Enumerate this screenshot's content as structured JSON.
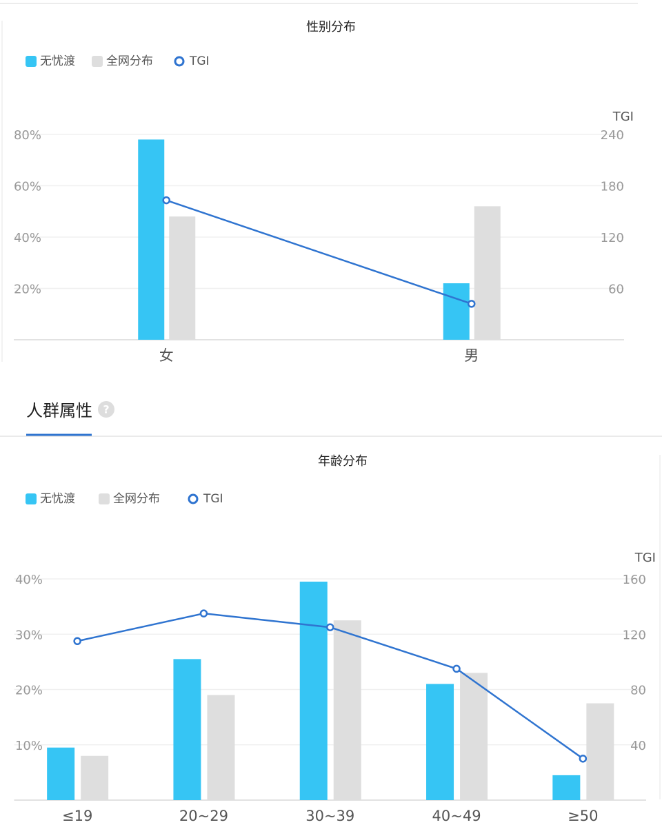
{
  "section_title": "人群属性",
  "chart_data": [
    {
      "type": "bar",
      "title": "性别分布",
      "categories": [
        "女",
        "男"
      ],
      "series": [
        {
          "name": "无忧渡",
          "color": "#36c5f4",
          "values": [
            78,
            22
          ]
        },
        {
          "name": "全网分布",
          "color": "#dedede",
          "values": [
            48,
            52
          ]
        },
        {
          "name": "TGI",
          "color": "#2f74d0",
          "type": "line",
          "axis": "y2",
          "values": [
            163,
            42
          ]
        }
      ],
      "ylim": [
        0,
        80
      ],
      "yticks": [
        {
          "value": 20,
          "label": "20%"
        },
        {
          "value": 40,
          "label": "40%"
        },
        {
          "value": 60,
          "label": "60%"
        },
        {
          "value": 80,
          "label": "80%"
        }
      ],
      "y2label": "TGI",
      "y2lim": [
        0,
        240
      ],
      "y2ticks": [
        60,
        120,
        180,
        240
      ],
      "grid": true,
      "legend": "top-left"
    },
    {
      "type": "bar",
      "title": "年龄分布",
      "categories": [
        "≤19",
        "20~29",
        "30~39",
        "40~49",
        "≥50"
      ],
      "series": [
        {
          "name": "无忧渡",
          "color": "#36c5f4",
          "values": [
            9.5,
            25.5,
            39.5,
            21,
            4.5
          ]
        },
        {
          "name": "全网分布",
          "color": "#dedede",
          "values": [
            8,
            19,
            32.5,
            23,
            17.5
          ]
        },
        {
          "name": "TGI",
          "color": "#2f74d0",
          "type": "line",
          "axis": "y2",
          "values": [
            115,
            135,
            125,
            95,
            30
          ]
        }
      ],
      "ylim": [
        0,
        40
      ],
      "yticks": [
        {
          "value": 10,
          "label": "10%"
        },
        {
          "value": 20,
          "label": "20%"
        },
        {
          "value": 30,
          "label": "30%"
        },
        {
          "value": 40,
          "label": "40%"
        }
      ],
      "y2label": "TGI",
      "y2lim": [
        0,
        160
      ],
      "y2ticks": [
        40,
        80,
        120,
        160
      ],
      "grid": true,
      "legend": "top-left"
    }
  ]
}
